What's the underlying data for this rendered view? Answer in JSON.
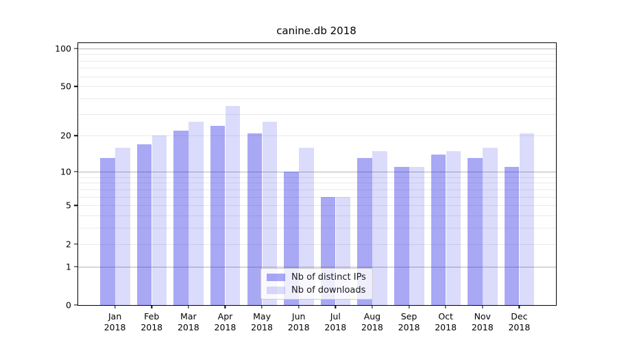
{
  "figure": {
    "background": "#ffffff"
  },
  "chart_data": {
    "type": "bar",
    "title": "canine.db 2018",
    "categories": [
      "Jan 2018",
      "Feb 2018",
      "Mar 2018",
      "Apr 2018",
      "May 2018",
      "Jun 2018",
      "Jul 2018",
      "Aug 2018",
      "Sep 2018",
      "Oct 2018",
      "Nov 2018",
      "Dec 2018"
    ],
    "series": [
      {
        "name": "Nb of distinct IPs",
        "color": "rgba(30,30,230,0.39)",
        "values": [
          13,
          17,
          22,
          24,
          21,
          10,
          6,
          13,
          11,
          14,
          13,
          11
        ]
      },
      {
        "name": "Nb of downloads",
        "color": "rgba(30,30,230,0.16)",
        "values": [
          16,
          20,
          26,
          35,
          26,
          16,
          6,
          15,
          11,
          15,
          16,
          21
        ]
      }
    ],
    "xlabel": "",
    "ylabel": "",
    "yscale": "log1p",
    "ylim": [
      0,
      110
    ],
    "yticks": [
      0,
      1,
      2,
      5,
      10,
      20,
      50,
      100
    ],
    "yticks_major": [
      1,
      10,
      100
    ],
    "yticks_minor": [
      2,
      3,
      4,
      5,
      6,
      7,
      8,
      9,
      20,
      30,
      40,
      50,
      60,
      70,
      80,
      90
    ],
    "grid": true,
    "legend_position": "lower center",
    "colors": {
      "grid_major": "#b3b3b3",
      "grid_minor": "#eaeaea",
      "axis": "#000000",
      "text": "#000000",
      "legend_bg": "rgba(255,255,255,0.8)",
      "legend_border": "#cccccc"
    }
  }
}
